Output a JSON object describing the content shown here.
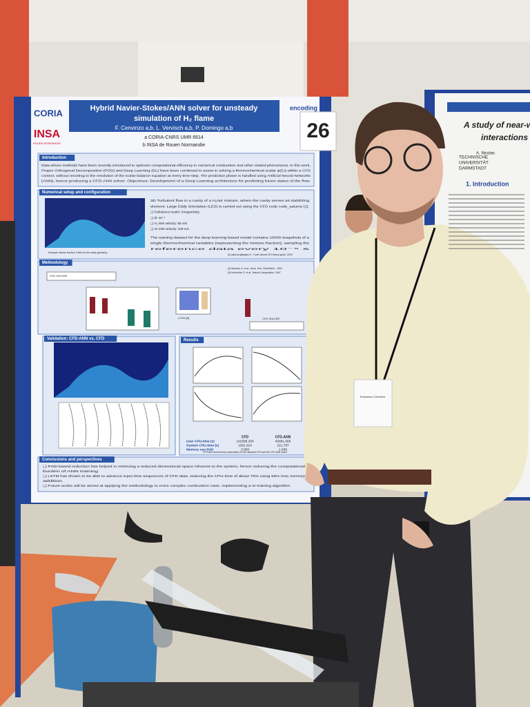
{
  "poster": {
    "logos": [
      "CORIA",
      "INSA"
    ],
    "logo_sub": "ROUEN NORMANDIE",
    "funder": "encoding",
    "title_lines": [
      "Hybrid Navier-Stokes/ANN solver for unsteady",
      "simulation of H₂ flame"
    ],
    "authors": "F. Cenvinzo a,b, L. Vervisch a,b, P. Domingo a,b",
    "affiliations": [
      "a CORIA-CNRS UMR 6614",
      "b INSA de Rouen Normandie"
    ],
    "sections": [
      "Introduction",
      "Numerical setup and configuration",
      "Methodology",
      "Validation: CFD-ANN vs. CFD",
      "Results",
      "Conclusions and perspectives"
    ],
    "intro_text": [
      "Data-driven methods have been recently introduced to optimize computational efficiency in numerical combustion and other related phenomena. In this work,",
      "Proper Orthogonal Decomposition (POD) and Deep Learning (DL) have been combined to assist in solving a thermochemical scalar φ(ξ,t) within a CFD",
      "context, without resorting to the resolution of the scalar balance equation at every time-step. The prediction phase is handled using Artificial Neural Networks",
      "(ANN), hence producing a CFD-ANN solver. Objectives: Development of a Deep Learning architecture for predicting future states of the flow."
    ],
    "setup_text": [
      "3D Turbulent flow in a cavity of a H₂/air mixture, where the cavity serves as stabilizing",
      "element. Large Eddy Simulation (LES) is carried out using the CFD code code_saturne [1].",
      "❑ Turbulence model: Smagorinsky",
      "❑ dt: 10⁻⁵",
      "❑ H₂ inlet velocity: 55 m/s",
      "❑ Air inlet velocity: 100 m/s",
      "The training dataset for the deep learning based model contains 10000 snapshots of a",
      "single thermochemical variables (representing the mixture fraction), sampling the",
      "reference data every 10⁻⁵ s"
    ],
    "setup_caption": "Example mixture fraction Z field for the cavity geometry",
    "setup_ref": "[1] saturne.gitpages.fr - Code saturne 8.0 theory guide, 2024",
    "method_labels": [
      "CFD SOLVER",
      "LSTM [3]",
      "CFD SOLVER"
    ],
    "method_refs": [
      "[2] Sarrazin G. et al., Annu. Rev. Fluid Mech., 1993",
      "[3] Hochreiter S. et al., Neural Computation, 1997"
    ],
    "results_table": {
      "header": [
        "CFD",
        "CFD-ANN"
      ],
      "rows": [
        [
          "User CPU-time (s)",
          "191588.250",
          "40981.905"
        ],
        [
          "System CPU-time (s)",
          "1381.910",
          "221.787"
        ],
        [
          "Memory use (Gb)",
          "3.958",
          "1.836"
        ]
      ]
    },
    "results_caption": "CPU time and memory consumption for the standard CFD and the CFD-ANN solver",
    "conclusions": [
      "❑ POD-based reduction has helped in retrieving a reduced dimensional space inherent to the system, hence reducing the computational",
      "burden of ANN training",
      "❑ LSTM has shown to be able to advance input time sequences of CFD data, reducing the CPU-time of about 75% using 55% less memory",
      "addition.",
      "❑ Future works will be aimed at applying the methodology to more complex combustion case, implementing a re-training algorithm."
    ]
  },
  "tag": "26",
  "right_poster": {
    "title_lines": [
      "A study of near-w",
      "interactions"
    ],
    "university": [
      "TECHNISCHE",
      "UNIVERSITÄT",
      "DARMSTADT"
    ],
    "authors": "A. Nicolas",
    "heading": "1. Introduction"
  },
  "badge": "Francesco Cenvinzo"
}
